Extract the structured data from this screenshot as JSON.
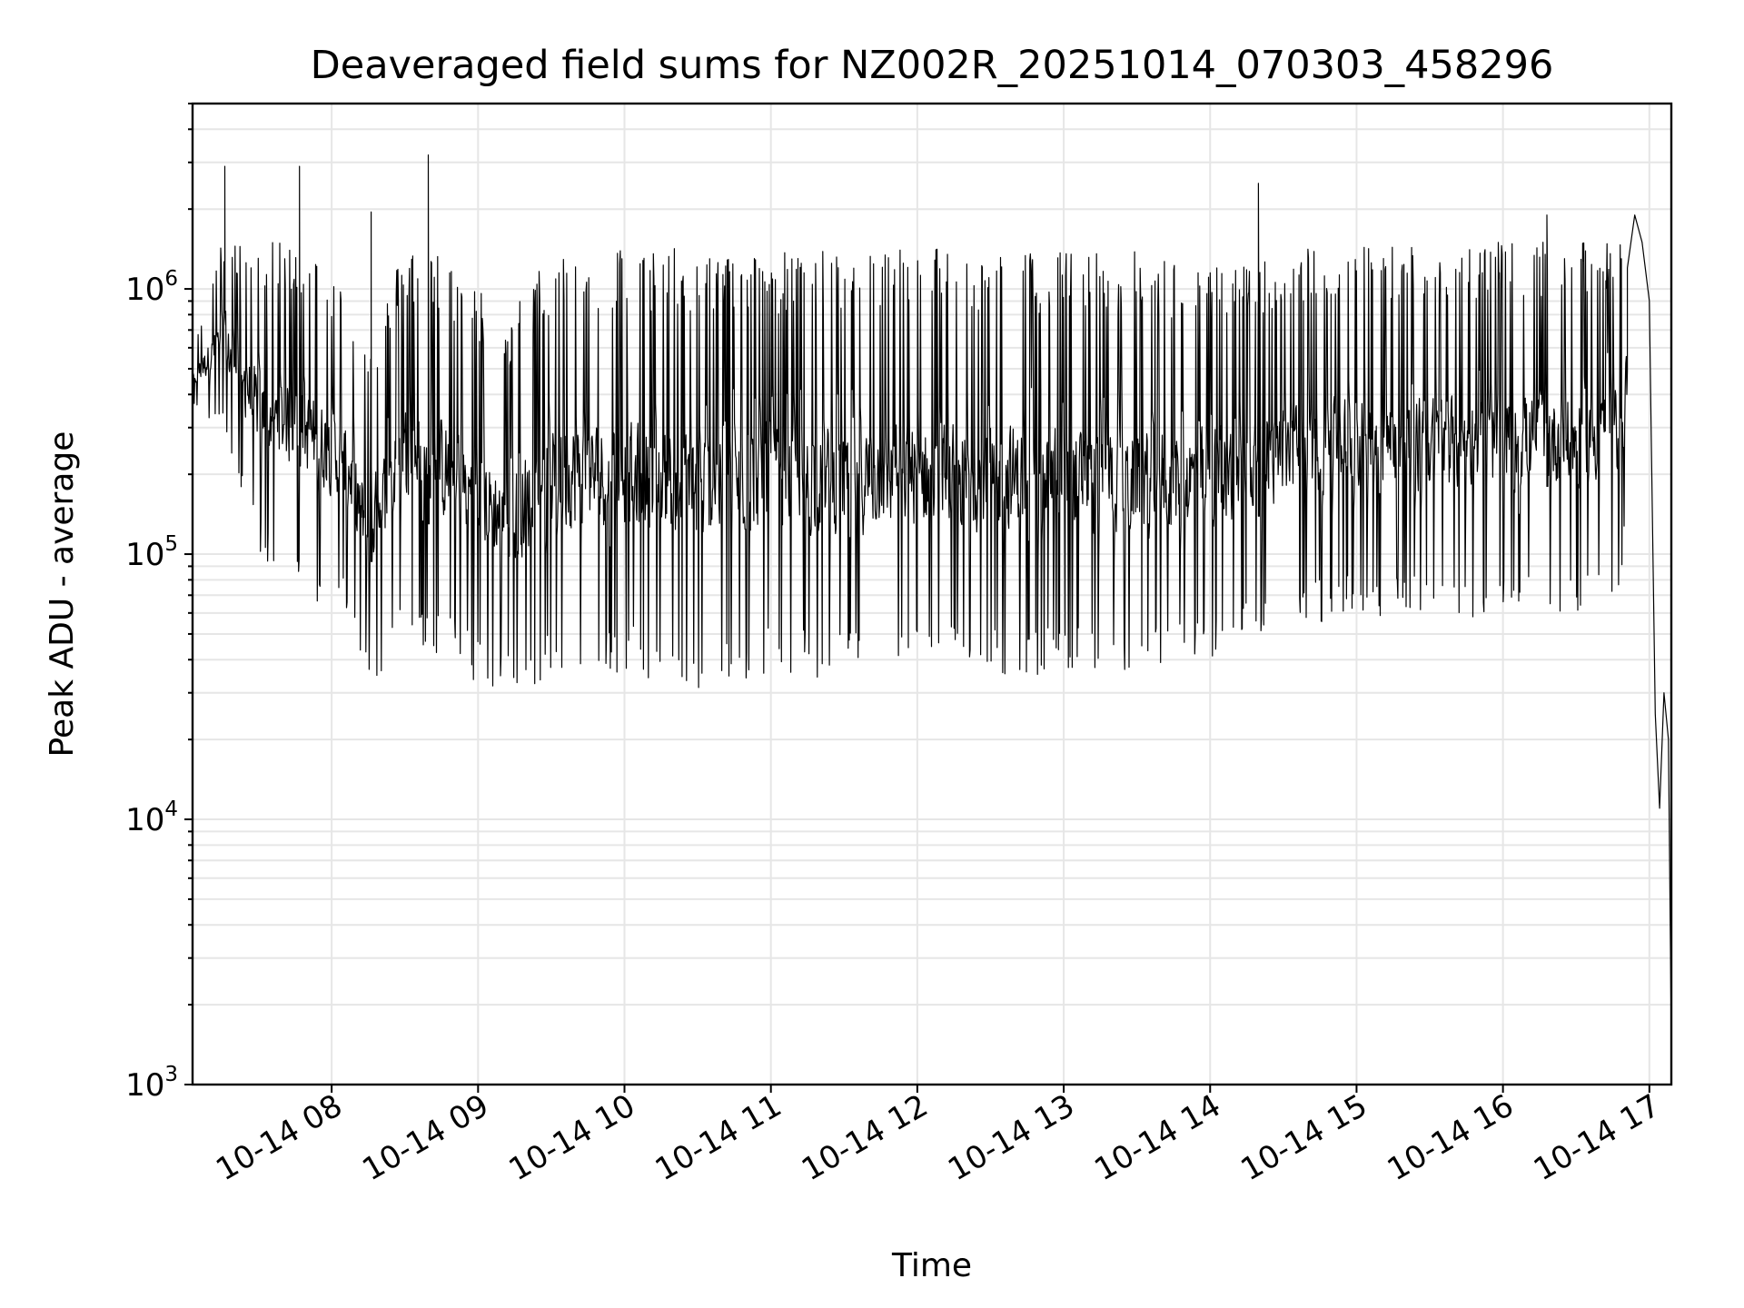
{
  "chart_data": {
    "type": "line",
    "title": "Deaveraged field sums for NZ002R_20251014_070303_458296",
    "xlabel": "Time",
    "ylabel": "Peak ADU - average",
    "yscale": "log",
    "ylim": [
      1000,
      5000000
    ],
    "xlim_hours": [
      7.05,
      17.15
    ],
    "grid": true,
    "line_color": "#000000",
    "x_ticks": [
      {
        "hour": 8,
        "label": "10-14 08"
      },
      {
        "hour": 9,
        "label": "10-14 09"
      },
      {
        "hour": 10,
        "label": "10-14 10"
      },
      {
        "hour": 11,
        "label": "10-14 11"
      },
      {
        "hour": 12,
        "label": "10-14 12"
      },
      {
        "hour": 13,
        "label": "10-14 13"
      },
      {
        "hour": 14,
        "label": "10-14 14"
      },
      {
        "hour": 15,
        "label": "10-14 15"
      },
      {
        "hour": 16,
        "label": "10-14 16"
      },
      {
        "hour": 17,
        "label": "10-14 17"
      }
    ],
    "y_ticks": [
      {
        "value": 1000,
        "base": "10",
        "exp": "3"
      },
      {
        "value": 10000,
        "base": "10",
        "exp": "4"
      },
      {
        "value": 100000,
        "base": "10",
        "exp": "5"
      },
      {
        "value": 1000000,
        "base": "10",
        "exp": "6"
      }
    ],
    "series": [
      {
        "name": "deaveraged field sum",
        "envelope": [
          {
            "hour": 7.05,
            "low": 350000,
            "high": 600000
          },
          {
            "hour": 7.25,
            "low": 300000,
            "high": 1500000
          },
          {
            "hour": 7.5,
            "low": 100000,
            "high": 1500000
          },
          {
            "hour": 7.8,
            "low": 70000,
            "high": 1500000
          },
          {
            "hour": 8.1,
            "low": 60000,
            "high": 1000000
          },
          {
            "hour": 8.25,
            "low": 30000,
            "high": 600000
          },
          {
            "hour": 8.5,
            "low": 50000,
            "high": 1500000
          },
          {
            "hour": 8.75,
            "low": 40000,
            "high": 1400000
          },
          {
            "hour": 9.2,
            "low": 28000,
            "high": 800000
          },
          {
            "hour": 9.5,
            "low": 35000,
            "high": 1400000
          },
          {
            "hour": 10.0,
            "low": 35000,
            "high": 1500000
          },
          {
            "hour": 10.5,
            "low": 28000,
            "high": 1400000
          },
          {
            "hour": 11.0,
            "low": 35000,
            "high": 1400000
          },
          {
            "hour": 11.5,
            "low": 32000,
            "high": 1400000
          },
          {
            "hour": 12.0,
            "low": 35000,
            "high": 1500000
          },
          {
            "hour": 12.5,
            "low": 33000,
            "high": 1400000
          },
          {
            "hour": 13.0,
            "low": 35000,
            "high": 1400000
          },
          {
            "hour": 13.5,
            "low": 32000,
            "high": 1400000
          },
          {
            "hour": 14.0,
            "low": 40000,
            "high": 1200000
          },
          {
            "hour": 14.5,
            "low": 50000,
            "high": 1400000
          },
          {
            "hour": 15.0,
            "low": 60000,
            "high": 1500000
          },
          {
            "hour": 15.5,
            "low": 55000,
            "high": 1500000
          },
          {
            "hour": 16.0,
            "low": 60000,
            "high": 1500000
          },
          {
            "hour": 16.5,
            "low": 60000,
            "high": 1500000
          },
          {
            "hour": 16.8,
            "low": 70000,
            "high": 1500000
          },
          {
            "hour": 16.95,
            "low": 600000,
            "high": 1900000
          }
        ],
        "spikes": [
          {
            "hour": 7.27,
            "value": 2900000
          },
          {
            "hour": 7.78,
            "value": 2900000
          },
          {
            "hour": 8.27,
            "value": 1950000
          },
          {
            "hour": 8.66,
            "value": 3200000
          },
          {
            "hour": 14.33,
            "value": 2500000
          },
          {
            "hour": 16.3,
            "value": 1900000
          }
        ],
        "tail": [
          {
            "hour": 16.85,
            "value": 1200000
          },
          {
            "hour": 16.9,
            "value": 1900000
          },
          {
            "hour": 16.95,
            "value": 1500000
          },
          {
            "hour": 17.0,
            "value": 900000
          },
          {
            "hour": 17.02,
            "value": 150000
          },
          {
            "hour": 17.04,
            "value": 25000
          },
          {
            "hour": 17.07,
            "value": 11000
          },
          {
            "hour": 17.1,
            "value": 30000
          },
          {
            "hour": 17.13,
            "value": 20000
          },
          {
            "hour": 17.15,
            "value": 1500
          }
        ]
      }
    ]
  }
}
